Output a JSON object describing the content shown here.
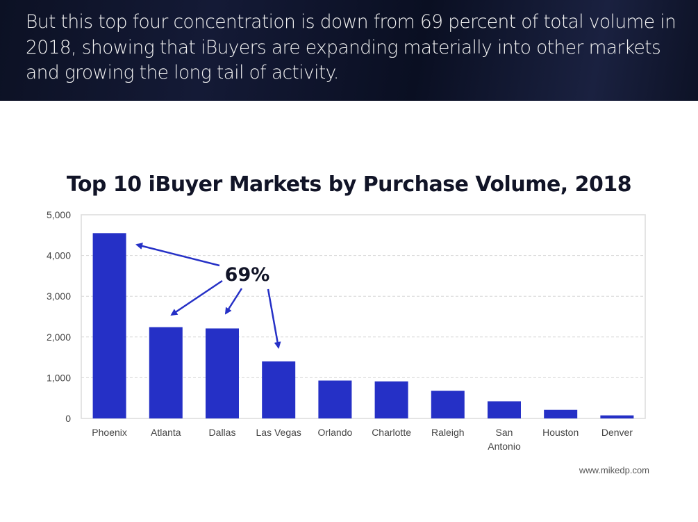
{
  "banner": {
    "text": "But this top four concentration is down from 69 percent of total volume in 2018, showing that iBuyers are expanding materially into other markets and growing the long tail of activity."
  },
  "chart_data": {
    "type": "bar",
    "title": "Top 10 iBuyer Markets by Purchase Volume, 2018",
    "xlabel": "",
    "ylabel": "",
    "categories": [
      "Phoenix",
      "Atlanta",
      "Dallas",
      "Las Vegas",
      "Orlando",
      "Charlotte",
      "Raleigh",
      "San Antonio",
      "Houston",
      "Denver"
    ],
    "values": [
      4550,
      2240,
      2210,
      1400,
      930,
      910,
      680,
      420,
      210,
      75
    ],
    "ylim": [
      0,
      5000
    ],
    "yticks": [
      0,
      1000,
      2000,
      3000,
      4000,
      5000
    ],
    "ytick_labels": [
      "0",
      "1,000",
      "2,000",
      "3,000",
      "4,000",
      "5,000"
    ],
    "grid": true,
    "bar_color": "#2530c6",
    "annotation": {
      "text": "69%",
      "points_to": [
        "Phoenix",
        "Atlanta",
        "Dallas",
        "Las Vegas"
      ]
    }
  },
  "credit": "www.mikedp.com"
}
